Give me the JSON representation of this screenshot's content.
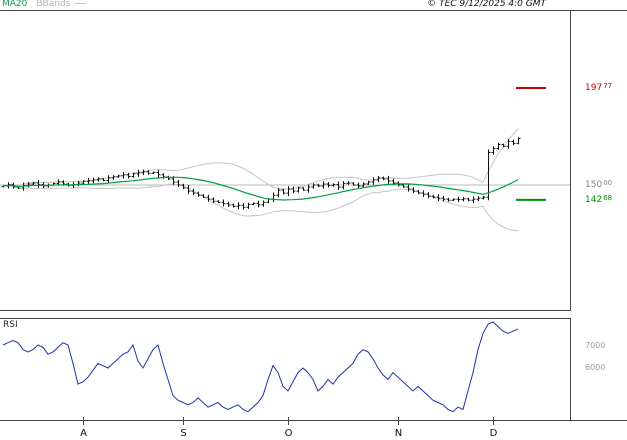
{
  "header": {
    "ma20_label": "MA20",
    "bbands_label": "BBands",
    "copyright": "© TEC 9/12/2025 4:0 GMT"
  },
  "colors": {
    "ma20": "#00a040",
    "bbands": "#c4c4c4",
    "candles": "#111111",
    "rsi": "#2233aa",
    "grid": "#b9b9b9",
    "border": "#444444",
    "level_high": "#cc0000",
    "level_mid": "#808080",
    "level_low": "#009000",
    "axis_text": "#111111"
  },
  "price_axis": {
    "levels": [
      {
        "int": "197",
        "dec": "77",
        "value": 197.77,
        "color": "#cc0000"
      },
      {
        "int": "150",
        "dec": "00",
        "value": 150.0,
        "color": "#808080"
      },
      {
        "int": "142",
        "dec": "68",
        "value": 142.68,
        "color": "#009000"
      }
    ]
  },
  "rsi_label": "RSI",
  "rsi_axis": {
    "ticks": [
      {
        "label": "7000",
        "value": 70
      },
      {
        "label": "6000",
        "value": 60
      }
    ]
  },
  "chart_data": {
    "type": "candlestick",
    "title": "",
    "panels": [
      "price with MA20 + Bollinger Bands",
      "RSI"
    ],
    "price_panel": {
      "ma_window": 20,
      "bollinger_mult": 2,
      "levels": {
        "resistance": 197.77,
        "pivot": 150.0,
        "support": 142.68
      },
      "closes": [
        149.5,
        150.2,
        149.0,
        148.5,
        149.8,
        150.5,
        151.0,
        150.2,
        149.5,
        150.0,
        150.8,
        151.5,
        150.5,
        149.8,
        150.3,
        151.0,
        151.8,
        152.0,
        152.5,
        153.0,
        152.2,
        153.5,
        154.0,
        154.5,
        155.0,
        154.2,
        155.5,
        156.0,
        156.5,
        155.8,
        156.2,
        155.0,
        154.0,
        153.0,
        151.5,
        150.0,
        148.5,
        147.0,
        146.0,
        145.0,
        144.0,
        143.0,
        142.0,
        141.5,
        140.8,
        140.2,
        139.5,
        140.0,
        139.0,
        140.5,
        141.0,
        140.2,
        141.5,
        143.0,
        145.0,
        147.5,
        146.0,
        148.0,
        147.0,
        148.5,
        147.5,
        149.0,
        150.0,
        149.5,
        150.5,
        149.8,
        150.2,
        149.0,
        150.8,
        151.0,
        150.0,
        149.5,
        150.5,
        151.5,
        152.5,
        153.5,
        153.0,
        152.0,
        151.0,
        150.0,
        149.0,
        148.0,
        147.0,
        146.0,
        145.5,
        144.5,
        144.0,
        143.5,
        143.0,
        142.5,
        143.0,
        142.8,
        143.2,
        142.5,
        143.0,
        143.5,
        144.0,
        166.0,
        168.0,
        170.0,
        169.0,
        171.5,
        170.5,
        173.0
      ]
    },
    "rsi_panel": {
      "range_shown": [
        60,
        70
      ],
      "values": [
        70,
        71,
        72,
        71,
        68,
        67,
        68,
        70,
        69,
        66,
        67,
        69,
        71,
        70,
        62,
        53,
        54,
        56,
        59,
        62,
        61,
        60,
        62,
        64,
        66,
        67,
        70,
        63,
        60,
        64,
        68,
        70,
        62,
        55,
        48,
        46,
        45,
        44,
        45,
        47,
        45,
        43,
        44,
        45,
        43,
        42,
        43,
        44,
        42,
        41,
        43,
        45,
        48,
        55,
        61,
        58,
        52,
        50,
        54,
        58,
        60,
        58,
        55,
        50,
        52,
        55,
        53,
        56,
        58,
        60,
        62,
        66,
        68,
        67,
        64,
        60,
        57,
        55,
        58,
        56,
        54,
        52,
        50,
        52,
        50,
        48,
        46,
        45,
        44,
        42,
        41,
        43,
        42,
        50,
        58,
        68,
        75,
        79,
        80,
        78,
        76,
        75,
        76,
        77
      ]
    },
    "x_axis": {
      "month_ticks": [
        {
          "label": "A",
          "index": 16
        },
        {
          "label": "S",
          "index": 36
        },
        {
          "label": "O",
          "index": 57
        },
        {
          "label": "N",
          "index": 79
        },
        {
          "label": "D",
          "index": 98
        }
      ]
    }
  }
}
